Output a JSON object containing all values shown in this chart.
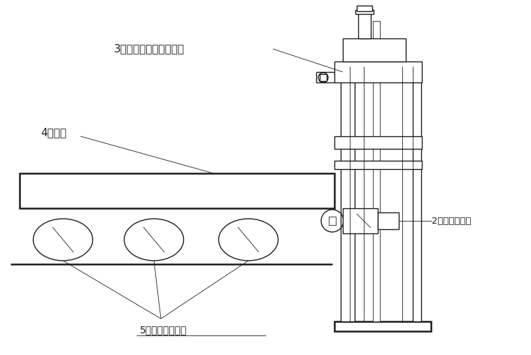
{
  "bg_color": "#ffffff",
  "lc": "#1a1a1a",
  "lw": 1.0,
  "lw_thin": 0.6,
  "lw_thick": 1.8,
  "label_3": "3．测量框架及气缸机构",
  "label_4": "4．板坤",
  "label_2": "2．激光测距以",
  "label_5": "5．板坤输送辊道"
}
